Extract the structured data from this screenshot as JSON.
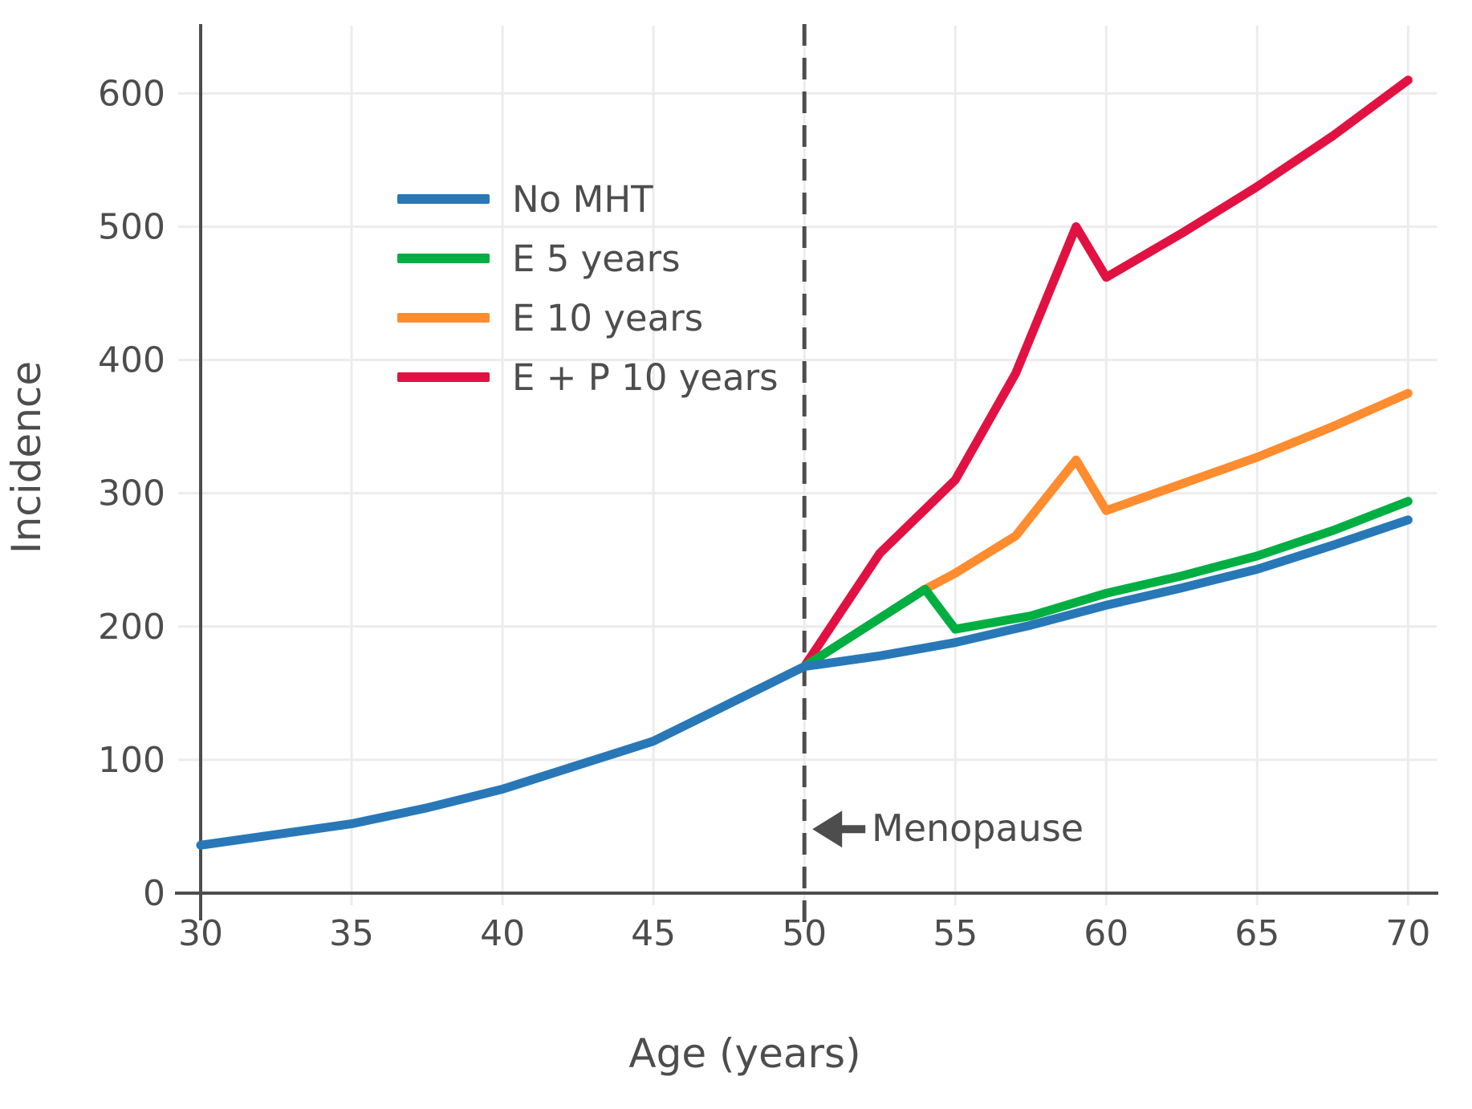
{
  "chart_data": {
    "type": "line",
    "title": "",
    "xlabel": "Age (years)",
    "ylabel": "Incidence",
    "x_ticks": [
      30,
      35,
      40,
      45,
      50,
      55,
      60,
      65,
      70
    ],
    "y_ticks": [
      0,
      100,
      200,
      300,
      400,
      500,
      600
    ],
    "xlim": [
      30,
      71
    ],
    "ylim": [
      0,
      652
    ],
    "grid": true,
    "legend_position": "upper-left-inside",
    "colors": {
      "axis_and_text": "#4D4D4D",
      "gridline": "#ECECEC",
      "dashed_line": "#4D4D4D"
    },
    "series": [
      {
        "name": "No MHT",
        "color": "#2878B8",
        "x": [
          30,
          32.5,
          35,
          37.5,
          40,
          42.5,
          45,
          47.5,
          50,
          52.5,
          55,
          57.5,
          60,
          62.5,
          65,
          67.5,
          70
        ],
        "y": [
          36,
          44,
          52,
          64,
          78,
          96,
          114,
          142,
          170,
          178,
          188,
          201,
          216,
          229,
          243,
          261,
          280
        ]
      },
      {
        "name": "E 5 years",
        "color": "#00AE42",
        "x": [
          50,
          54,
          55,
          57.5,
          60,
          62.5,
          65,
          67.5,
          70
        ],
        "y": [
          170,
          228,
          198,
          208,
          225,
          238,
          253,
          272,
          294
        ]
      },
      {
        "name": "E 10 years",
        "color": "#FF8C2E",
        "x": [
          50,
          54,
          55,
          57,
          59,
          60,
          62.5,
          65,
          67.5,
          70
        ],
        "y": [
          170,
          228,
          240,
          268,
          325,
          287,
          307,
          327,
          350,
          375
        ]
      },
      {
        "name": "E + P 10 years",
        "color": "#E11242",
        "x": [
          50,
          52.5,
          55,
          57,
          59,
          60,
          62.5,
          65,
          67.5,
          70
        ],
        "y": [
          170,
          255,
          310,
          390,
          500,
          462,
          495,
          530,
          568,
          610
        ]
      }
    ],
    "annotations": [
      {
        "type": "vline",
        "x": 50,
        "style": "dashed"
      },
      {
        "type": "label-with-left-arrow",
        "text": "Menopause",
        "x": 50,
        "y": 48
      }
    ]
  }
}
